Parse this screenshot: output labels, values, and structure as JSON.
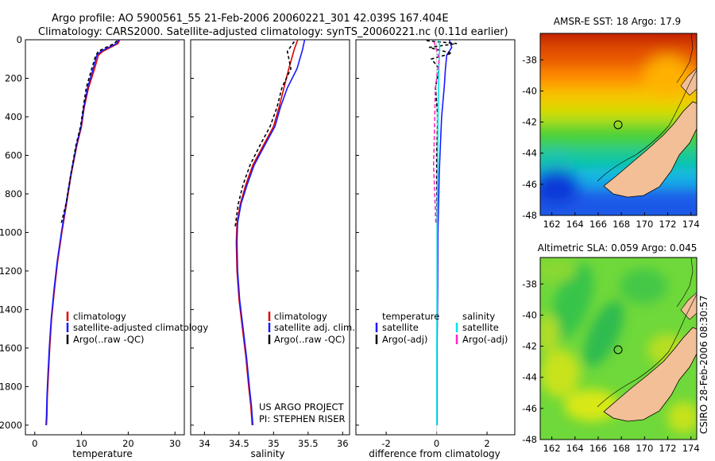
{
  "header": {
    "title_line1": "Argo profile: AO 5900561_55 21-Feb-2006 20060221_301 42.039S 167.404E",
    "title_line2": "Climatology: CARS2000. Satellite-adjusted climatology: synTS_20060221.nc (0.11d earlier)"
  },
  "colors": {
    "clim": "#e00000",
    "sat": "#1a1aff",
    "argo": "#000000",
    "sat_salt": "#00e5ee",
    "argo_salt": "#ff22cc",
    "land": "#f2bf96"
  },
  "chart_data": [
    {
      "id": "temperature",
      "type": "line",
      "xlabel": "temperature",
      "ylabel": "",
      "invert_y": true,
      "xlim": [
        -2,
        32
      ],
      "ylim": [
        0,
        2050
      ],
      "xticks": [
        0,
        10,
        20,
        30
      ],
      "yticks": [
        0,
        200,
        400,
        600,
        800,
        1000,
        1200,
        1400,
        1600,
        1800,
        2000
      ],
      "series": [
        {
          "name": "climatology",
          "color": "#e00000",
          "dash": "none",
          "x": [
            18.2,
            17.8,
            16.2,
            14.6,
            13.6,
            12.8,
            11.5,
            10.6,
            10.0,
            9.0,
            7.8,
            6.8,
            5.8,
            4.9,
            4.2,
            3.6,
            3.2,
            2.9,
            2.7,
            2.6,
            2.5
          ],
          "y": [
            0,
            20,
            40,
            60,
            80,
            150,
            250,
            350,
            450,
            550,
            700,
            850,
            1000,
            1150,
            1300,
            1450,
            1600,
            1750,
            1850,
            1950,
            2000
          ]
        },
        {
          "name": "satellite-adjusted climatology",
          "color": "#1a1aff",
          "dash": "none",
          "x": [
            18.0,
            17.5,
            15.8,
            14.2,
            13.3,
            12.5,
            11.3,
            10.5,
            9.9,
            8.9,
            7.7,
            6.7,
            5.7,
            4.8,
            4.1,
            3.5,
            3.1,
            2.8,
            2.6,
            2.5,
            2.4
          ],
          "y": [
            0,
            20,
            40,
            60,
            80,
            150,
            250,
            350,
            450,
            550,
            700,
            850,
            1000,
            1150,
            1300,
            1450,
            1600,
            1750,
            1850,
            1950,
            2000
          ]
        },
        {
          "name": "Argo(..raw -QC)",
          "color": "#000000",
          "dash": "4 3",
          "x": [
            17.6,
            17.0,
            15.2,
            13.6,
            13.0,
            12.2,
            11.0,
            10.4,
            9.8,
            8.8,
            7.7,
            6.7,
            5.7
          ],
          "y": [
            5,
            20,
            40,
            60,
            85,
            150,
            250,
            350,
            450,
            550,
            700,
            850,
            950
          ]
        }
      ],
      "legend": {
        "position": "lower-right",
        "entries": [
          {
            "label": "climatology",
            "color": "#e00000"
          },
          {
            "label": "satellite-adjusted climatology",
            "color": "#1a1aff"
          },
          {
            "label": "Argo(..raw -QC)",
            "color": "#000000"
          }
        ]
      }
    },
    {
      "id": "salinity",
      "type": "line",
      "xlabel": "salinity",
      "ylabel": "",
      "invert_y": true,
      "xlim": [
        33.8,
        36.1
      ],
      "ylim": [
        0,
        2050
      ],
      "xticks": [
        34,
        34.5,
        35,
        35.5,
        36
      ],
      "yticks": [
        0,
        200,
        400,
        600,
        800,
        1000,
        1200,
        1400,
        1600,
        1800,
        2000
      ],
      "series": [
        {
          "name": "climatology",
          "color": "#e00000",
          "dash": "none",
          "x": [
            35.35,
            35.3,
            35.22,
            35.15,
            35.08,
            35.0,
            34.85,
            34.7,
            34.6,
            34.52,
            34.47,
            34.46,
            34.47,
            34.5,
            34.55,
            34.6,
            34.64,
            34.67,
            34.69
          ],
          "y": [
            0,
            50,
            150,
            250,
            350,
            450,
            550,
            650,
            750,
            850,
            950,
            1050,
            1200,
            1350,
            1500,
            1650,
            1800,
            1900,
            2000
          ]
        },
        {
          "name": "satellite adj. clim.",
          "color": "#1a1aff",
          "dash": "none",
          "x": [
            35.45,
            35.42,
            35.34,
            35.2,
            35.1,
            35.02,
            34.87,
            34.72,
            34.62,
            34.53,
            34.48,
            34.47,
            34.48,
            34.51,
            34.56,
            34.61,
            34.65,
            34.68,
            34.7
          ],
          "y": [
            0,
            50,
            150,
            250,
            350,
            450,
            550,
            650,
            750,
            850,
            950,
            1050,
            1200,
            1350,
            1500,
            1650,
            1800,
            1900,
            2000
          ]
        },
        {
          "name": "Argo(..raw -QC)",
          "color": "#000000",
          "dash": "4 3",
          "x": [
            35.3,
            35.2,
            35.25,
            35.12,
            35.05,
            34.95,
            34.8,
            34.66,
            34.56,
            34.49,
            34.44
          ],
          "y": [
            10,
            60,
            150,
            250,
            350,
            450,
            550,
            650,
            750,
            850,
            980
          ]
        }
      ],
      "legend": {
        "position": "lower-right",
        "entries": [
          {
            "label": "climatology",
            "color": "#e00000"
          },
          {
            "label": "satellite adj. clim.",
            "color": "#1a1aff"
          },
          {
            "label": "Argo(..raw -QC)",
            "color": "#000000"
          }
        ]
      },
      "annotations": [
        "US ARGO PROJECT",
        "PI: STEPHEN RISER"
      ]
    },
    {
      "id": "difference",
      "type": "line",
      "xlabel": "difference from climatology",
      "ylabel": "",
      "invert_y": true,
      "xlim": [
        -3.2,
        3.1
      ],
      "ylim": [
        0,
        2050
      ],
      "xticks": [
        -2,
        0,
        2
      ],
      "yticks": [
        0,
        200,
        400,
        600,
        800,
        1000,
        1200,
        1400,
        1600,
        1800,
        2000
      ],
      "series": [
        {
          "name": "temperature satellite",
          "color": "#1a1aff",
          "dash": "none",
          "x": [
            0.5,
            0.6,
            0.4,
            0.35,
            0.3,
            0.2,
            0.15,
            0.1,
            0.08,
            0.05,
            0.04,
            0.02,
            0.02
          ],
          "y": [
            0,
            40,
            80,
            150,
            250,
            400,
            550,
            700,
            850,
            1000,
            1300,
            1600,
            2000
          ]
        },
        {
          "name": "temperature Argo(-adj)",
          "color": "#000000",
          "dash": "4 3",
          "x": [
            -0.4,
            0.8,
            -0.3,
            0.6,
            -0.2,
            0.1,
            -0.05,
            0.05,
            0.0,
            0.02
          ],
          "y": [
            5,
            20,
            40,
            70,
            100,
            150,
            250,
            400,
            600,
            950
          ]
        },
        {
          "name": "salinity satellite",
          "color": "#00e5ee",
          "dash": "none",
          "x": [
            0.1,
            0.12,
            0.1,
            0.08,
            0.06,
            0.05,
            0.04,
            0.02,
            0.02,
            0.01,
            0.01
          ],
          "y": [
            0,
            40,
            100,
            200,
            350,
            500,
            700,
            1000,
            1300,
            1600,
            2000
          ]
        },
        {
          "name": "salinity Argo(-adj)",
          "color": "#ff22cc",
          "dash": "5 3",
          "x": [
            -0.1,
            0.1,
            -0.05,
            -0.08,
            -0.12,
            -0.06,
            -0.03
          ],
          "y": [
            10,
            100,
            250,
            450,
            650,
            850,
            950
          ]
        }
      ],
      "legend": {
        "position": "lower",
        "entries": [
          {
            "label": "temperature",
            "color": "none"
          },
          {
            "label": "satellite",
            "color": "#1a1aff"
          },
          {
            "label": "Argo(-adj)",
            "color": "#000000"
          },
          {
            "label": "salinity",
            "color": "none"
          },
          {
            "label": "satellite",
            "color": "#00e5ee"
          },
          {
            "label": "Argo(-adj)",
            "color": "#ff22cc"
          }
        ]
      }
    },
    {
      "id": "sst_map",
      "type": "heatmap",
      "title": "AMSR-E SST: 18 Argo: 17.9",
      "xlim": [
        161,
        174.5
      ],
      "ylim": [
        -48,
        -36.3
      ],
      "xticks": [
        162,
        164,
        166,
        168,
        170,
        172,
        174
      ],
      "yticks": [
        -38,
        -40,
        -42,
        -44,
        -46,
        -48
      ],
      "marker": {
        "lon": 167.4,
        "lat": -42.04
      }
    },
    {
      "id": "sla_map",
      "type": "heatmap",
      "title": "Altimetric SLA: 0.059 Argo: 0.045",
      "xlim": [
        161,
        174.5
      ],
      "ylim": [
        -48,
        -36.3
      ],
      "xticks": [
        162,
        164,
        166,
        168,
        170,
        172,
        174
      ],
      "yticks": [
        -38,
        -40,
        -42,
        -44,
        -46,
        -48
      ],
      "marker": {
        "lon": 167.4,
        "lat": -42.04
      }
    }
  ],
  "footer": {
    "credit": "CSIRO 28-Feb-2006 08:30:57"
  }
}
